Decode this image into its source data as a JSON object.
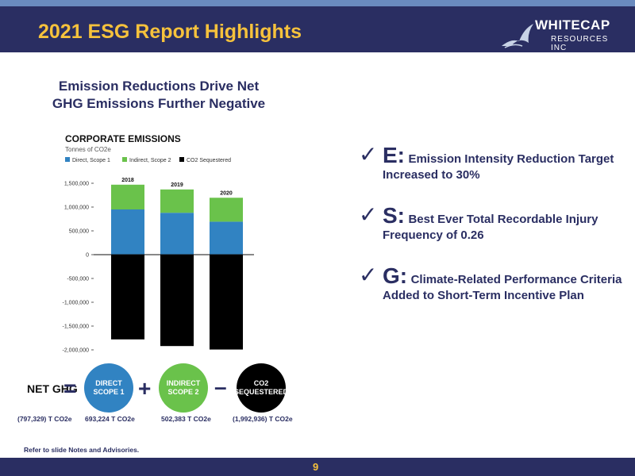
{
  "header": {
    "title": "2021 ESG Report Highlights"
  },
  "logo": {
    "name": "WHITECAP",
    "sub": "RESOURCES INC"
  },
  "subtitle": {
    "line1": "Emission Reductions Drive Net",
    "line2": "GHG Emissions Further Negative"
  },
  "chart_data": {
    "type": "bar",
    "title": "CORPORATE EMISSIONS",
    "subtitle": "Tonnes of CO2e",
    "categories": [
      "2018",
      "2019",
      "2020"
    ],
    "series": [
      {
        "name": "Direct, Scope 1",
        "color": "#3183c2",
        "values": [
          950000,
          880000,
          693224
        ]
      },
      {
        "name": "Indirect, Scope 2",
        "color": "#6ac24b",
        "values": [
          520000,
          490000,
          502383
        ]
      },
      {
        "name": "CO2 Sequestered",
        "color": "#000000",
        "values": [
          -1780000,
          -1920000,
          -1992936
        ]
      }
    ],
    "ylim": [
      -2000000,
      1500000
    ],
    "yticks": [
      "1,500,000",
      "1,000,000",
      "500,000",
      "0",
      "-500,000",
      "-1,000,000",
      "-1,500,000",
      "-2,000,000"
    ],
    "ytick_values": [
      1500000,
      1000000,
      500000,
      0,
      -500000,
      -1000000,
      -1500000,
      -2000000
    ],
    "stacked": true,
    "legend_position": "top"
  },
  "equation": {
    "net_label": "NET GHG",
    "eq": "=",
    "plus": "+",
    "minus": "–",
    "c1_line1": "DIRECT",
    "c1_line2": "SCOPE 1",
    "c1_color": "#3183c2",
    "c2_line1": "INDIRECT",
    "c2_line2": "SCOPE 2",
    "c2_color": "#6ac24b",
    "c3_line1": "CO2",
    "c3_line2": "SEQUESTERED",
    "c3_color": "#000000"
  },
  "values": {
    "net": "(797,329) T CO2e",
    "scope1": "693,224 T CO2e",
    "scope2": "502,383 T CO2e",
    "seq": "(1,992,936) T CO2e"
  },
  "note": "Refer to slide Notes and Advisories.",
  "bullets": [
    {
      "letter": "E:",
      "text": "Emission Intensity Reduction Target Increased to 30%"
    },
    {
      "letter": "S:",
      "text": "Best Ever Total Recordable Injury Frequency of 0.26"
    },
    {
      "letter": "G:",
      "text": "Climate-Related Performance Criteria Added to Short-Term Incentive Plan"
    }
  ],
  "footer": {
    "page": "9"
  }
}
